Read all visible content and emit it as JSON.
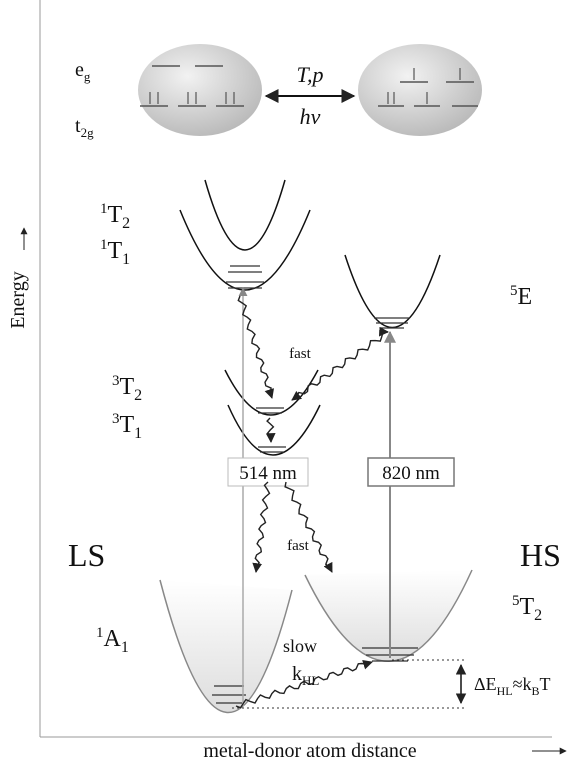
{
  "axes": {
    "y_label": "Energy",
    "x_label": "metal-donor atom distance"
  },
  "orbitals": {
    "eg": {
      "main": "e",
      "sub": "g"
    },
    "t2g": {
      "main": "t",
      "sub": "2g"
    }
  },
  "switch": {
    "top": "T,p",
    "bottom": "hν"
  },
  "states": [
    {
      "sup": "1",
      "main": "T",
      "sub": "2"
    },
    {
      "sup": "1",
      "main": "T",
      "sub": "1"
    },
    {
      "sup": "5",
      "main": "E"
    },
    {
      "sup": "3",
      "main": "T",
      "sub": "2"
    },
    {
      "sup": "3",
      "main": "T",
      "sub": "1"
    },
    {
      "sup": "1",
      "main": "A",
      "sub": "1"
    },
    {
      "sup": "5",
      "main": "T",
      "sub": "2"
    }
  ],
  "labels": {
    "fast_upper": "fast",
    "fast_lower": "fast",
    "slow": "slow",
    "rate": {
      "main": "k",
      "sub": "HL"
    },
    "ls": "LS",
    "hs": "HS"
  },
  "gap": {
    "a": "ΔE",
    "a_sub": "HL",
    "b": "≈k",
    "b_sub": "B",
    "c": "T"
  },
  "excitations": [
    "514 nm",
    "820 nm"
  ]
}
